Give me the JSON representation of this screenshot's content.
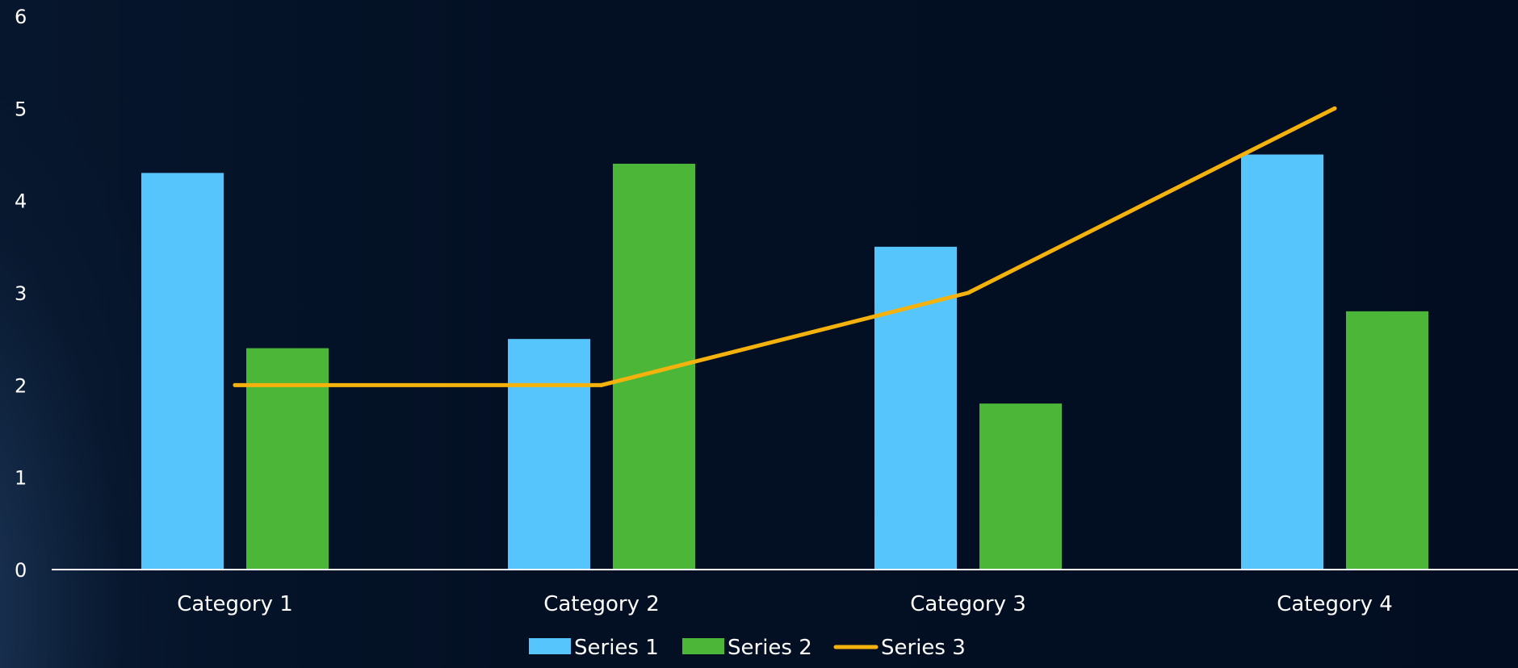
{
  "chart_data": {
    "type": "bar",
    "title": "",
    "xlabel": "",
    "ylabel": "",
    "ylim": [
      0,
      6
    ],
    "yticks": [
      0,
      1,
      2,
      3,
      4,
      5,
      6
    ],
    "categories": [
      "Category 1",
      "Category 2",
      "Category 3",
      "Category 4"
    ],
    "series": [
      {
        "name": "Series 1",
        "kind": "bar",
        "color": "#56c5fb",
        "values": [
          4.3,
          2.5,
          3.5,
          4.5
        ]
      },
      {
        "name": "Series 2",
        "kind": "bar",
        "color": "#4bb638",
        "values": [
          2.4,
          4.4,
          1.8,
          2.8
        ]
      },
      {
        "name": "Series 3",
        "kind": "line",
        "color": "#f5b20c",
        "values": [
          2,
          2,
          3,
          5
        ]
      }
    ],
    "grid": false,
    "legend": "bottom",
    "background": "#020d21"
  }
}
